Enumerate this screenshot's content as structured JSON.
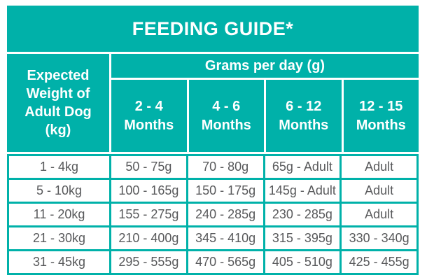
{
  "title": "FEEDING GUIDE*",
  "colors": {
    "teal": "#00b1a9",
    "header_text": "#ffffff",
    "data_text": "#58595b",
    "cell_background": "#ffffff"
  },
  "table": {
    "row_header": "Expected Weight of Adult Dog (kg)",
    "group_header": "Grams per day (g)",
    "columns": [
      "2 - 4 Months",
      "4 - 6 Months",
      "6 - 12 Months",
      "12 - 15 Months"
    ],
    "rows": [
      {
        "weight": "1 - 4kg",
        "values": [
          "50 - 75g",
          "70 - 80g",
          "65g - Adult",
          "Adult"
        ]
      },
      {
        "weight": "5 - 10kg",
        "values": [
          "100 - 165g",
          "150 - 175g",
          "145g - Adult",
          "Adult"
        ]
      },
      {
        "weight": "11 - 20kg",
        "values": [
          "155 - 275g",
          "240 - 285g",
          "230 - 285g",
          "Adult"
        ]
      },
      {
        "weight": "21 - 30kg",
        "values": [
          "210 - 400g",
          "345 - 410g",
          "315 - 395g",
          "330 - 340g"
        ]
      },
      {
        "weight": "31 - 45kg",
        "values": [
          "295 - 555g",
          "470 - 565g",
          "405 - 510g",
          "425 - 455g"
        ]
      }
    ]
  }
}
